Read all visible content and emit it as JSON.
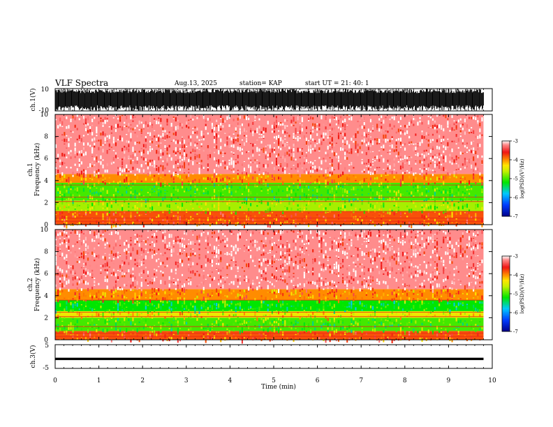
{
  "header": {
    "title": "VLF Spectra",
    "date": "Aug.13, 2025",
    "station": "station= KAP",
    "start": "start  UT  =   21: 40: 1"
  },
  "colors": {
    "spectrogram_low": "#0000a0",
    "spectrogram_mid": "#00e000",
    "spectrogram_yellow": "#ffff00",
    "spectrogram_high": "#ff0000",
    "spectrogram_max": "#ffffff",
    "waveform": "#000000"
  },
  "chart_data": [
    {
      "type": "line",
      "panel": "ch1-waveform",
      "ylabel": "ch.1(V)",
      "ylim": [
        -10,
        10
      ],
      "ytick_labels": [
        "10",
        "-10"
      ],
      "xlim": [
        0,
        10
      ],
      "description_of_signal": "dense noise, peaks near +10 V, troughs near -10 V"
    },
    {
      "type": "heatmap",
      "panel": "ch1-spectrogram",
      "ylabel": "ch.1\nFrequency  (kHz)",
      "ylim": [
        0,
        10
      ],
      "ytick_labels": [
        "0",
        "2",
        "4",
        "6",
        "8",
        "10"
      ],
      "xlim": [
        0,
        9.8
      ],
      "bands_khz": [
        {
          "from": 0,
          "to": 1.2,
          "level": -3.8
        },
        {
          "from": 1.2,
          "to": 2.2,
          "level": -4.7
        },
        {
          "from": 2.2,
          "to": 3.8,
          "level": -5.0
        },
        {
          "from": 3.8,
          "to": 4.6,
          "level": -4.0
        },
        {
          "from": 4.6,
          "to": 10,
          "level": -3.2
        }
      ],
      "colorbar": {
        "label": "log(PSD)(V²/Hz)",
        "min": -7,
        "max": -3,
        "tick_labels": [
          "-3",
          "-4",
          "-5",
          "-6",
          "-7"
        ]
      }
    },
    {
      "type": "heatmap",
      "panel": "ch2-spectrogram",
      "ylabel": "ch.2\nFrequency  (kHz)",
      "ylim": [
        0,
        10
      ],
      "ytick_labels": [
        "0",
        "2",
        "4",
        "6",
        "8",
        "10"
      ],
      "xlim": [
        0,
        9.8
      ],
      "bands_khz": [
        {
          "from": 0,
          "to": 0.8,
          "level": -3.8
        },
        {
          "from": 0.8,
          "to": 2.0,
          "level": -5.0
        },
        {
          "from": 2.0,
          "to": 2.6,
          "level": -4.4
        },
        {
          "from": 2.6,
          "to": 3.6,
          "level": -5.2
        },
        {
          "from": 3.6,
          "to": 4.6,
          "level": -4.0
        },
        {
          "from": 4.6,
          "to": 10,
          "level": -3.2
        }
      ],
      "colorbar": {
        "label": "log(PSD)(V²/Hz)",
        "min": -7,
        "max": -3,
        "tick_labels": [
          "-3",
          "-4",
          "-5",
          "-6",
          "-7"
        ]
      }
    },
    {
      "type": "line",
      "panel": "ch3-waveform",
      "ylabel": "ch.3(V)",
      "ylim": [
        -5,
        5
      ],
      "ytick_labels": [
        "5",
        "0",
        "-5"
      ],
      "xlim": [
        0,
        10
      ],
      "level_range": [
        -1.5,
        -0.5
      ]
    }
  ],
  "xaxis": {
    "label": "Time  (min)",
    "range": [
      0,
      10
    ],
    "tick_labels": [
      "0",
      "1",
      "2",
      "3",
      "4",
      "5",
      "6",
      "7",
      "8",
      "9",
      "10"
    ]
  }
}
